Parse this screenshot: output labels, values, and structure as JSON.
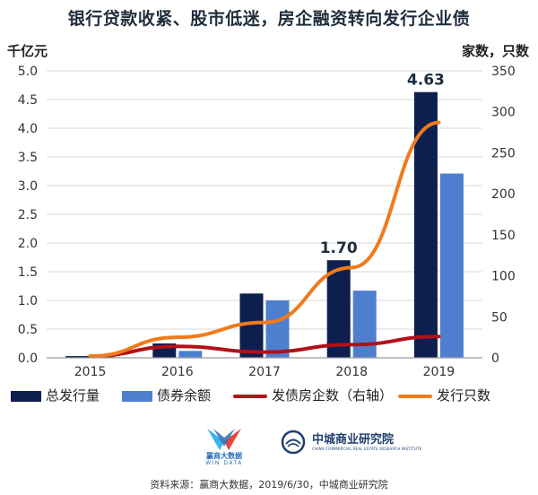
{
  "title": "银行贷款收紧、股市低迷，房企融资转向发行企业债",
  "left_unit": "千亿元",
  "right_unit": "家数，只数",
  "legend": [
    {
      "label": "总发行量",
      "color": "#0e1f4f",
      "kind": "bar"
    },
    {
      "label": "债券余额",
      "color": "#4e7fcf",
      "kind": "bar"
    },
    {
      "label": "发债房企数（右轴）",
      "color": "#b31017",
      "kind": "line"
    },
    {
      "label": "发行只数",
      "color": "#f07a1c",
      "kind": "line"
    }
  ],
  "logos": {
    "wind_name": "赢商大数据",
    "wind_sub": "WIN DATA",
    "cb_name": "中城商业研究院",
    "cb_sub": "CHINA COMMERCIAL REAL ESTATE RESEARCH INSTITUTE"
  },
  "source": "资料来源：赢商大数据，2019/6/30，中城商业研究院",
  "chart_data": {
    "type": "bar",
    "categories": [
      "2015",
      "2016",
      "2017",
      "2018",
      "2019"
    ],
    "series": [
      {
        "name": "总发行量",
        "axis": "left",
        "kind": "bar",
        "color": "#0e1f4f",
        "values": [
          0.03,
          0.25,
          1.12,
          1.7,
          4.63
        ]
      },
      {
        "name": "债券余额",
        "axis": "left",
        "kind": "bar",
        "color": "#4e7fcf",
        "values": [
          0.02,
          0.12,
          1.0,
          1.17,
          3.21
        ]
      },
      {
        "name": "发债房企数（右轴）",
        "axis": "right",
        "kind": "line",
        "color": "#b31017",
        "values": [
          2,
          14,
          7,
          16,
          26
        ]
      },
      {
        "name": "发行只数",
        "axis": "right",
        "kind": "line",
        "color": "#f07a1c",
        "values": [
          2,
          25,
          43,
          110,
          287
        ]
      }
    ],
    "data_labels": [
      {
        "series": "总发行量",
        "category": "2018",
        "text": "1.70"
      },
      {
        "series": "总发行量",
        "category": "2019",
        "text": "4.63"
      }
    ],
    "left_axis": {
      "min": 0,
      "max": 5.0,
      "step": 0.5,
      "ticks": [
        "0.0",
        "0.5",
        "1.0",
        "1.5",
        "2.0",
        "2.5",
        "3.0",
        "3.5",
        "4.0",
        "4.5",
        "5.0"
      ]
    },
    "right_axis": {
      "min": 0,
      "max": 350,
      "step": 50,
      "ticks": [
        "0",
        "50",
        "100",
        "150",
        "200",
        "250",
        "300",
        "350"
      ]
    },
    "grid": "horizontal",
    "legend_position": "bottom"
  }
}
